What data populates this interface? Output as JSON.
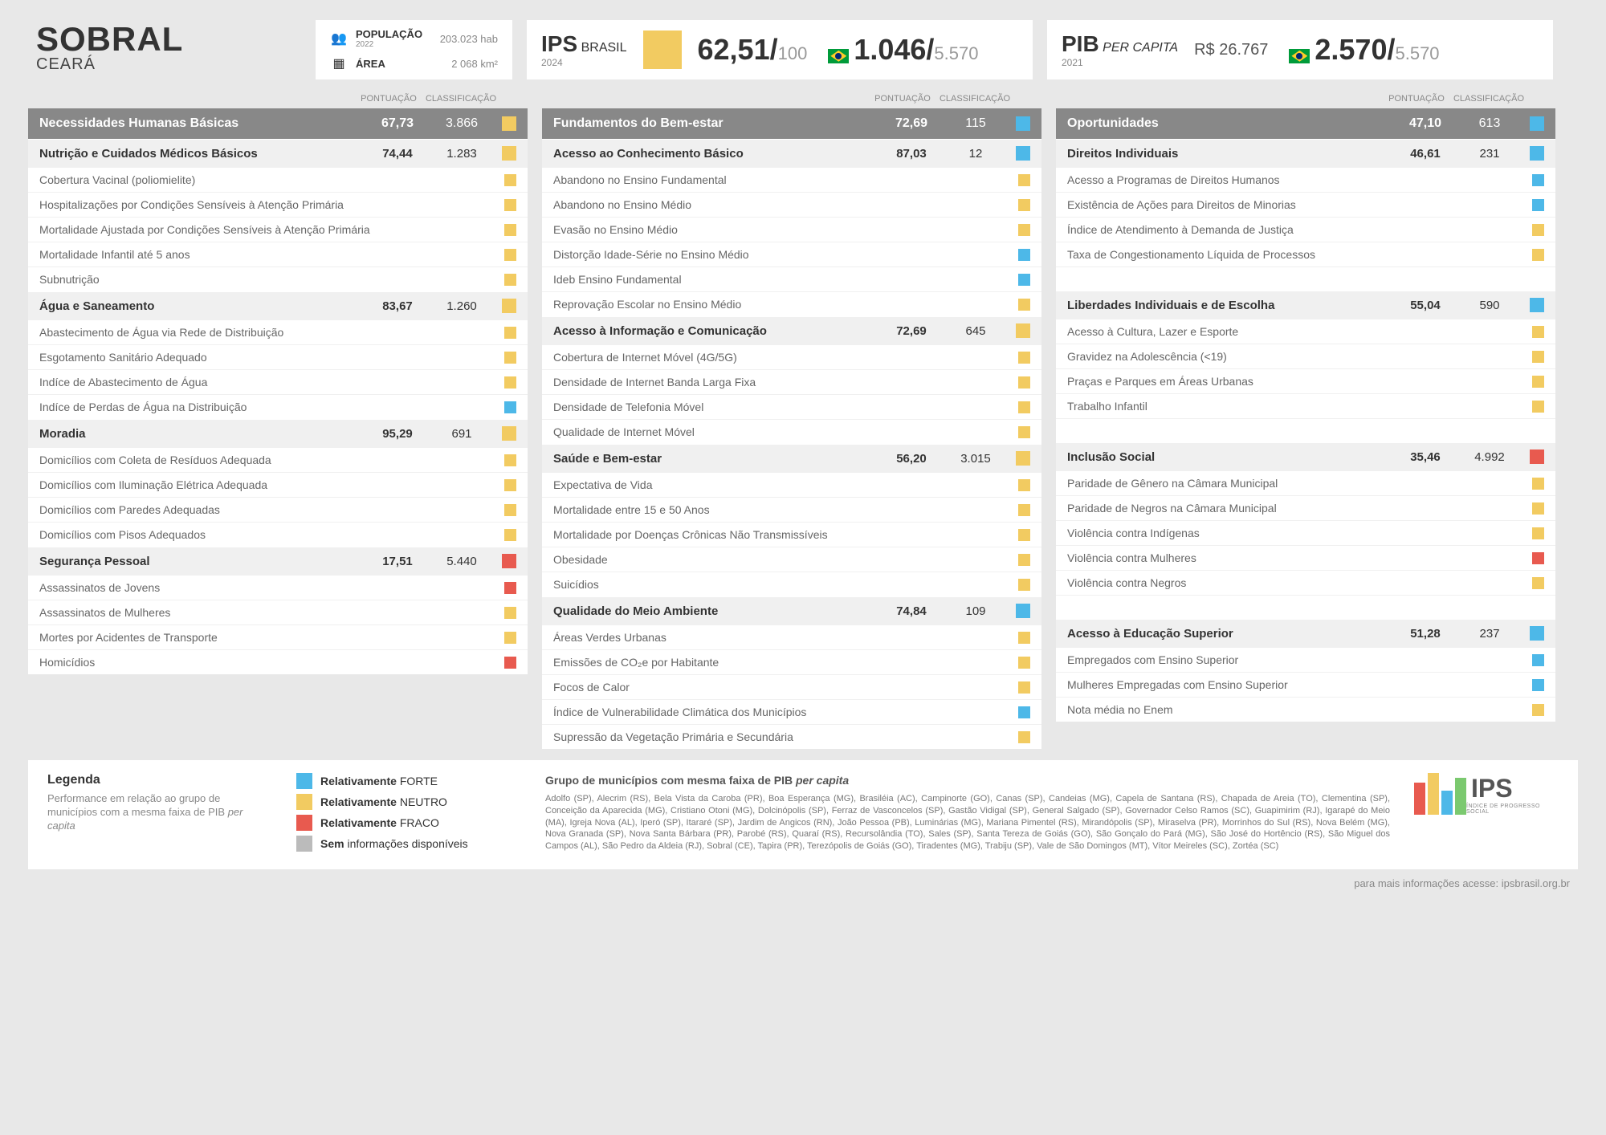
{
  "city": {
    "name": "SOBRAL",
    "state": "CEARÁ"
  },
  "stats": {
    "pop_label": "POPULAÇÃO",
    "pop_year": "2022",
    "pop_val": "203.023 hab",
    "area_label": "ÁREA",
    "area_val": "2 068 km²"
  },
  "ips": {
    "title": "IPS",
    "sub": "BRASIL",
    "year": "2024",
    "score": "62,51/",
    "den": "100",
    "rank": "1.046/",
    "rank_den": "5.570"
  },
  "pib": {
    "title": "PIB",
    "sub": "PER CAPITA",
    "year": "2021",
    "val": "R$ 26.767",
    "rank": "2.570/",
    "rank_den": "5.570"
  },
  "headers": {
    "score": "PONTUAÇÃO",
    "rank": "CLASSIFICAÇÃO"
  },
  "dims": [
    {
      "name": "Necessidades Humanas Básicas",
      "score": "67,73",
      "rank": "3.866",
      "color": "c-yellow",
      "comps": [
        {
          "name": "Nutrição e Cuidados Médicos Básicos",
          "score": "74,44",
          "rank": "1.283",
          "color": "c-yellow",
          "inds": [
            {
              "t": "Cobertura Vacinal (poliomielite)",
              "c": "c-yellow"
            },
            {
              "t": "Hospitalizações por Condições Sensíveis à Atenção Primária",
              "c": "c-yellow"
            },
            {
              "t": "Mortalidade Ajustada por Condições Sensíveis à Atenção Primária",
              "c": "c-yellow"
            },
            {
              "t": "Mortalidade Infantil até 5 anos",
              "c": "c-yellow"
            },
            {
              "t": "Subnutrição",
              "c": "c-yellow"
            }
          ]
        },
        {
          "name": "Água e Saneamento",
          "score": "83,67",
          "rank": "1.260",
          "color": "c-yellow",
          "inds": [
            {
              "t": "Abastecimento de Água via Rede de Distribuição",
              "c": "c-yellow"
            },
            {
              "t": "Esgotamento Sanitário Adequado",
              "c": "c-yellow"
            },
            {
              "t": "Indíce de Abastecimento de Água",
              "c": "c-yellow"
            },
            {
              "t": "Indíce de Perdas de Água na Distribuição",
              "c": "c-blue"
            }
          ]
        },
        {
          "name": "Moradia",
          "score": "95,29",
          "rank": "691",
          "color": "c-yellow",
          "inds": [
            {
              "t": "Domicílios com Coleta de Resíduos Adequada",
              "c": "c-yellow"
            },
            {
              "t": "Domicílios com Iluminação Elétrica Adequada",
              "c": "c-yellow"
            },
            {
              "t": "Domicílios com Paredes Adequadas",
              "c": "c-yellow"
            },
            {
              "t": "Domicílios com Pisos Adequados",
              "c": "c-yellow"
            }
          ]
        },
        {
          "name": "Segurança Pessoal",
          "score": "17,51",
          "rank": "5.440",
          "color": "c-red",
          "inds": [
            {
              "t": "Assassinatos de Jovens",
              "c": "c-red"
            },
            {
              "t": "Assassinatos de Mulheres",
              "c": "c-yellow"
            },
            {
              "t": "Mortes por Acidentes de Transporte",
              "c": "c-yellow"
            },
            {
              "t": "Homicídios",
              "c": "c-red"
            }
          ]
        }
      ]
    },
    {
      "name": "Fundamentos do Bem-estar",
      "score": "72,69",
      "rank": "115",
      "color": "c-blue",
      "comps": [
        {
          "name": "Acesso ao Conhecimento Básico",
          "score": "87,03",
          "rank": "12",
          "color": "c-blue",
          "inds": [
            {
              "t": "Abandono no Ensino Fundamental",
              "c": "c-yellow"
            },
            {
              "t": "Abandono no Ensino Médio",
              "c": "c-yellow"
            },
            {
              "t": "Evasão no Ensino Médio",
              "c": "c-yellow"
            },
            {
              "t": "Distorção Idade-Série no Ensino Médio",
              "c": "c-blue"
            },
            {
              "t": "Ideb Ensino Fundamental",
              "c": "c-blue"
            },
            {
              "t": "Reprovação Escolar no Ensino Médio",
              "c": "c-yellow"
            }
          ]
        },
        {
          "name": "Acesso à Informação e Comunicação",
          "score": "72,69",
          "rank": "645",
          "color": "c-yellow",
          "inds": [
            {
              "t": "Cobertura de Internet Móvel (4G/5G)",
              "c": "c-yellow"
            },
            {
              "t": "Densidade de Internet Banda Larga Fixa",
              "c": "c-yellow"
            },
            {
              "t": "Densidade de Telefonia Móvel",
              "c": "c-yellow"
            },
            {
              "t": "Qualidade de Internet Móvel",
              "c": "c-yellow"
            }
          ]
        },
        {
          "name": "Saúde e Bem-estar",
          "score": "56,20",
          "rank": "3.015",
          "color": "c-yellow",
          "inds": [
            {
              "t": "Expectativa de Vida",
              "c": "c-yellow"
            },
            {
              "t": "Mortalidade entre 15 e 50 Anos",
              "c": "c-yellow"
            },
            {
              "t": "Mortalidade por Doenças Crônicas Não Transmissíveis",
              "c": "c-yellow"
            },
            {
              "t": "Obesidade",
              "c": "c-yellow"
            },
            {
              "t": "Suicídios",
              "c": "c-yellow"
            }
          ]
        },
        {
          "name": "Qualidade do Meio Ambiente",
          "score": "74,84",
          "rank": "109",
          "color": "c-blue",
          "inds": [
            {
              "t": "Áreas Verdes Urbanas",
              "c": "c-yellow"
            },
            {
              "t": "Emissões de CO₂e por Habitante",
              "c": "c-yellow"
            },
            {
              "t": "Focos de Calor",
              "c": "c-yellow"
            },
            {
              "t": "Índice de Vulnerabilidade Climática dos Municípios",
              "c": "c-blue"
            },
            {
              "t": "Supressão da Vegetação Primária e Secundária",
              "c": "c-yellow"
            }
          ]
        }
      ]
    },
    {
      "name": "Oportunidades",
      "score": "47,10",
      "rank": "613",
      "color": "c-blue",
      "comps": [
        {
          "name": "Direitos Individuais",
          "score": "46,61",
          "rank": "231",
          "color": "c-blue",
          "inds": [
            {
              "t": "Acesso a Programas de Direitos Humanos",
              "c": "c-blue"
            },
            {
              "t": "Existência de Ações para Direitos de Minorias",
              "c": "c-blue"
            },
            {
              "t": "Índice de Atendimento à Demanda de Justiça",
              "c": "c-yellow"
            },
            {
              "t": "Taxa de Congestionamento Líquida de Processos",
              "c": "c-yellow"
            }
          ],
          "spacer": true
        },
        {
          "name": "Liberdades Individuais e de Escolha",
          "score": "55,04",
          "rank": "590",
          "color": "c-blue",
          "inds": [
            {
              "t": "Acesso à Cultura, Lazer e Esporte",
              "c": "c-yellow"
            },
            {
              "t": "Gravidez na Adolescência (<19)",
              "c": "c-yellow"
            },
            {
              "t": "Praças e Parques em Áreas Urbanas",
              "c": "c-yellow"
            },
            {
              "t": "Trabalho Infantil",
              "c": "c-yellow"
            }
          ],
          "spacer": true
        },
        {
          "name": "Inclusão Social",
          "score": "35,46",
          "rank": "4.992",
          "color": "c-red",
          "inds": [
            {
              "t": "Paridade de Gênero na Câmara Municipal",
              "c": "c-yellow"
            },
            {
              "t": "Paridade de Negros na Câmara Municipal",
              "c": "c-yellow"
            },
            {
              "t": "Violência contra Indígenas",
              "c": "c-yellow"
            },
            {
              "t": "Violência contra Mulheres",
              "c": "c-red"
            },
            {
              "t": "Violência contra Negros",
              "c": "c-yellow"
            }
          ],
          "spacer": true
        },
        {
          "name": "Acesso à Educação Superior",
          "score": "51,28",
          "rank": "237",
          "color": "c-blue",
          "inds": [
            {
              "t": "Empregados com Ensino Superior",
              "c": "c-blue"
            },
            {
              "t": "Mulheres Empregadas com Ensino Superior",
              "c": "c-blue"
            },
            {
              "t": "Nota média no Enem",
              "c": "c-yellow"
            }
          ]
        }
      ]
    }
  ],
  "legend": {
    "title": "Legenda",
    "desc": "Performance em relação ao grupo de municípios com a mesma faixa de PIB per capita",
    "items": [
      {
        "c": "c-blue",
        "t": "Relativamente FORTE"
      },
      {
        "c": "c-yellow",
        "t": "Relativamente NEUTRO"
      },
      {
        "c": "c-red",
        "t": "Relativamente FRACO"
      },
      {
        "c": "c-gray",
        "t": "Sem informações disponíveis"
      }
    ]
  },
  "group": {
    "title": "Grupo de municípios com mesma faixa de PIB per capita",
    "text": "Adolfo (SP), Alecrim (RS), Bela Vista da Caroba (PR), Boa Esperança (MG), Brasiléia (AC), Campinorte (GO), Canas (SP), Candeias (MG), Capela de Santana (RS), Chapada de Areia (TO), Clementina (SP), Conceição da Aparecida (MG), Cristiano Otoni (MG), Dolcinópolis (SP), Ferraz de Vasconcelos (SP), Gastão Vidigal (SP), General Salgado (SP), Governador Celso Ramos (SC), Guapimirim (RJ), Igarapé do Meio (MA), Igreja Nova (AL), Iperó (SP), Itararé (SP), Jardim de Angicos (RN), João Pessoa (PB), Luminárias (MG), Mariana Pimentel (RS), Mirandópolis (SP), Miraselva (PR), Morrinhos do Sul (RS), Nova Belém (MG), Nova Granada (SP), Nova Santa Bárbara (PR), Parobé (RS), Quaraí (RS), Recursolândia (TO), Sales (SP), Santa Tereza de Goiás (GO), São Gonçalo do Pará (MG), São José do Hortêncio (RS), São Miguel dos Campos (AL), São Pedro da Aldeia (RJ), Sobral (CE), Tapira (PR), Terezópolis de Goiás (GO), Tiradentes (MG), Trabiju (SP), Vale de São Domingos (MT), Vítor Meireles (SC), Zortéa (SC)"
  },
  "footer": "para mais informações acesse: ipsbrasil.org.br",
  "logo": {
    "text": "IPS",
    "sub": "ÍNDICE DE PROGRESSO SOCIAL"
  }
}
